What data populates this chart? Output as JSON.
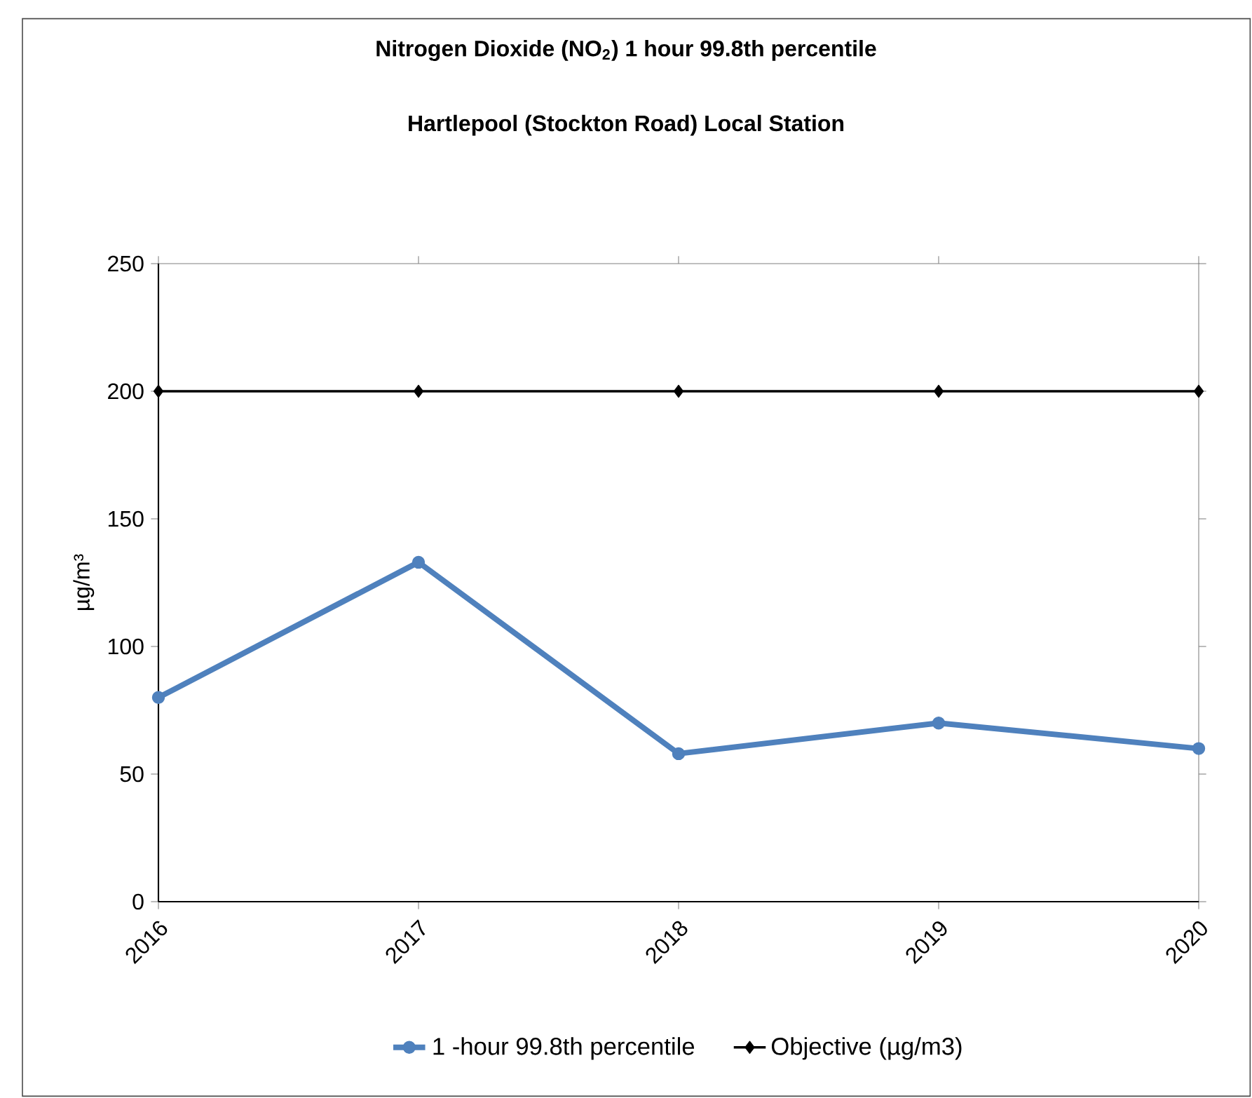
{
  "chart_data": {
    "type": "line",
    "title": "Nitrogen Dioxide (NO$_{2}$) 1 hour 99.8th percentile",
    "subtitle": "Hartlepool (Stockton Road) Local Station",
    "ylabel": "µg/m³",
    "categories": [
      "2016",
      "2017",
      "2018",
      "2019",
      "2020"
    ],
    "series": [
      {
        "name": "1 -hour 99.8th percentile",
        "color": "#4f81bd",
        "marker": "circle",
        "values": [
          80,
          133,
          58,
          70,
          60
        ]
      },
      {
        "name": "Objective (µg/m3)",
        "color": "#000000",
        "marker": "diamond",
        "values": [
          200,
          200,
          200,
          200,
          200
        ]
      }
    ],
    "ylim": [
      0,
      250
    ],
    "yticks": [
      0,
      50,
      100,
      150,
      200,
      250
    ],
    "grid": false,
    "legend": "bottom"
  }
}
